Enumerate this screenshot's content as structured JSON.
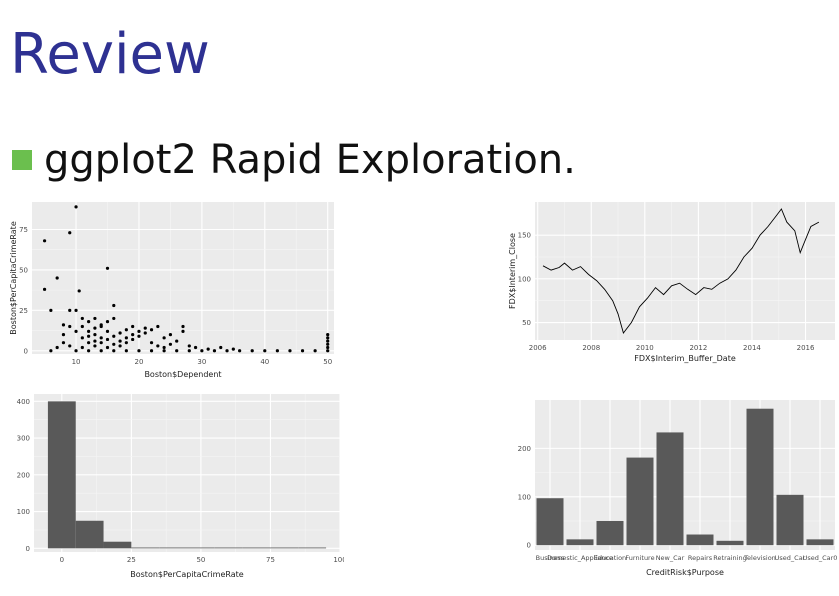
{
  "slide": {
    "title": "Review",
    "bullet": "ggplot2 Rapid Exploration.",
    "bullet_color": "#6bbf4e",
    "title_color": "#2e3192"
  },
  "chart_data": [
    {
      "type": "scatter",
      "xlabel": "Boston$Dependent",
      "ylabel": "Boston$PerCapitaCrimeRate",
      "xlim": [
        3,
        51
      ],
      "ylim": [
        -2,
        92
      ],
      "xticks": [
        10,
        20,
        30,
        40,
        50
      ],
      "yticks": [
        0,
        25,
        50,
        75
      ],
      "points": [
        [
          5,
          68
        ],
        [
          5,
          38
        ],
        [
          7,
          45
        ],
        [
          8,
          10
        ],
        [
          9,
          73
        ],
        [
          10,
          89
        ],
        [
          11,
          20
        ],
        [
          10.5,
          37
        ],
        [
          8,
          16
        ],
        [
          9,
          15
        ],
        [
          6,
          25
        ],
        [
          9,
          25
        ],
        [
          10,
          25
        ],
        [
          11,
          15
        ],
        [
          12,
          18
        ],
        [
          13,
          10
        ],
        [
          14,
          8
        ],
        [
          15,
          51
        ],
        [
          16,
          28
        ],
        [
          15,
          12
        ],
        [
          14,
          15
        ],
        [
          13,
          20
        ],
        [
          12,
          5
        ],
        [
          11,
          8
        ],
        [
          10,
          12
        ],
        [
          9,
          3
        ],
        [
          8,
          5
        ],
        [
          7,
          2
        ],
        [
          6,
          0
        ],
        [
          10,
          0
        ],
        [
          12,
          0
        ],
        [
          14,
          0
        ],
        [
          16,
          0
        ],
        [
          18,
          0
        ],
        [
          20,
          0
        ],
        [
          22,
          0
        ],
        [
          24,
          0
        ],
        [
          26,
          0
        ],
        [
          28,
          0
        ],
        [
          30,
          0
        ],
        [
          32,
          0
        ],
        [
          34,
          0
        ],
        [
          36,
          0
        ],
        [
          38,
          0
        ],
        [
          40,
          0
        ],
        [
          42,
          0
        ],
        [
          44,
          0
        ],
        [
          46,
          0
        ],
        [
          48,
          0
        ],
        [
          50,
          0
        ],
        [
          50,
          2
        ],
        [
          50,
          4
        ],
        [
          50,
          6
        ],
        [
          50,
          8
        ],
        [
          50,
          10
        ],
        [
          15,
          2
        ],
        [
          16,
          4
        ],
        [
          17,
          6
        ],
        [
          18,
          8
        ],
        [
          19,
          10
        ],
        [
          20,
          12
        ],
        [
          21,
          14
        ],
        [
          22,
          5
        ],
        [
          23,
          3
        ],
        [
          24,
          8
        ],
        [
          25,
          10
        ],
        [
          26,
          6
        ],
        [
          27,
          15
        ],
        [
          27,
          12
        ],
        [
          28,
          3
        ],
        [
          29,
          2
        ],
        [
          31,
          1
        ],
        [
          33,
          2
        ],
        [
          35,
          1
        ],
        [
          13,
          3
        ],
        [
          14,
          5
        ],
        [
          15,
          7
        ],
        [
          16,
          9
        ],
        [
          17,
          11
        ],
        [
          18,
          13
        ],
        [
          19,
          15
        ],
        [
          11,
          2
        ],
        [
          12,
          12
        ],
        [
          13,
          14
        ],
        [
          14,
          16
        ],
        [
          15,
          18
        ],
        [
          16,
          20
        ],
        [
          17,
          3
        ],
        [
          18,
          5
        ],
        [
          19,
          7
        ],
        [
          20,
          9
        ],
        [
          21,
          11
        ],
        [
          22,
          13
        ],
        [
          23,
          15
        ],
        [
          24,
          2
        ],
        [
          25,
          4
        ],
        [
          12,
          9
        ],
        [
          13,
          6
        ]
      ]
    },
    {
      "type": "line",
      "xlabel": "FDX$Interim_Buffer_Date",
      "ylabel": "FDX$Interim_Close",
      "xlim": [
        2005.9,
        2017.1
      ],
      "ylim": [
        30,
        188
      ],
      "xticks": [
        2006,
        2008,
        2010,
        2012,
        2014,
        2016
      ],
      "yticks": [
        50,
        100,
        150
      ],
      "x": [
        2006.2,
        2006.5,
        2006.8,
        2007.0,
        2007.3,
        2007.6,
        2007.9,
        2008.2,
        2008.5,
        2008.8,
        2009.0,
        2009.2,
        2009.5,
        2009.8,
        2010.1,
        2010.4,
        2010.7,
        2011.0,
        2011.3,
        2011.6,
        2011.9,
        2012.2,
        2012.5,
        2012.8,
        2013.1,
        2013.4,
        2013.7,
        2014.0,
        2014.3,
        2014.6,
        2014.9,
        2015.1,
        2015.3,
        2015.6,
        2015.8,
        2016.0,
        2016.2,
        2016.5
      ],
      "y": [
        115,
        110,
        113,
        118,
        110,
        114,
        105,
        98,
        88,
        75,
        60,
        38,
        50,
        68,
        78,
        90,
        82,
        92,
        95,
        88,
        82,
        90,
        88,
        95,
        100,
        110,
        125,
        135,
        150,
        160,
        172,
        180,
        165,
        155,
        130,
        145,
        160,
        165
      ]
    },
    {
      "type": "bar",
      "xlabel": "Boston$PerCapitaCrimeRate",
      "xlim": [
        -10,
        100
      ],
      "ylim": [
        -10,
        420
      ],
      "xticks": [
        0,
        25,
        50,
        75,
        100
      ],
      "yticks": [
        0,
        100,
        200,
        300,
        400
      ],
      "bins": [
        [
          -5,
          5,
          400
        ],
        [
          5,
          15,
          75
        ],
        [
          15,
          25,
          18
        ],
        [
          25,
          35,
          2
        ],
        [
          35,
          45,
          2
        ],
        [
          45,
          55,
          1
        ],
        [
          55,
          65,
          0
        ],
        [
          65,
          75,
          1
        ],
        [
          75,
          85,
          0
        ],
        [
          85,
          95,
          0
        ]
      ]
    },
    {
      "type": "bar",
      "xlabel": "CreditRisk$Purpose",
      "ylim": [
        -10,
        300
      ],
      "yticks": [
        0,
        100,
        200
      ],
      "categories": [
        "Business",
        "Domestic_Appliance",
        "Education",
        "Furniture",
        "New_Car",
        "Repairs",
        "Retraining",
        "Television",
        "Used_Car",
        "Used_Car0"
      ],
      "values": [
        97,
        12,
        50,
        181,
        233,
        22,
        9,
        282,
        104,
        12
      ]
    }
  ]
}
